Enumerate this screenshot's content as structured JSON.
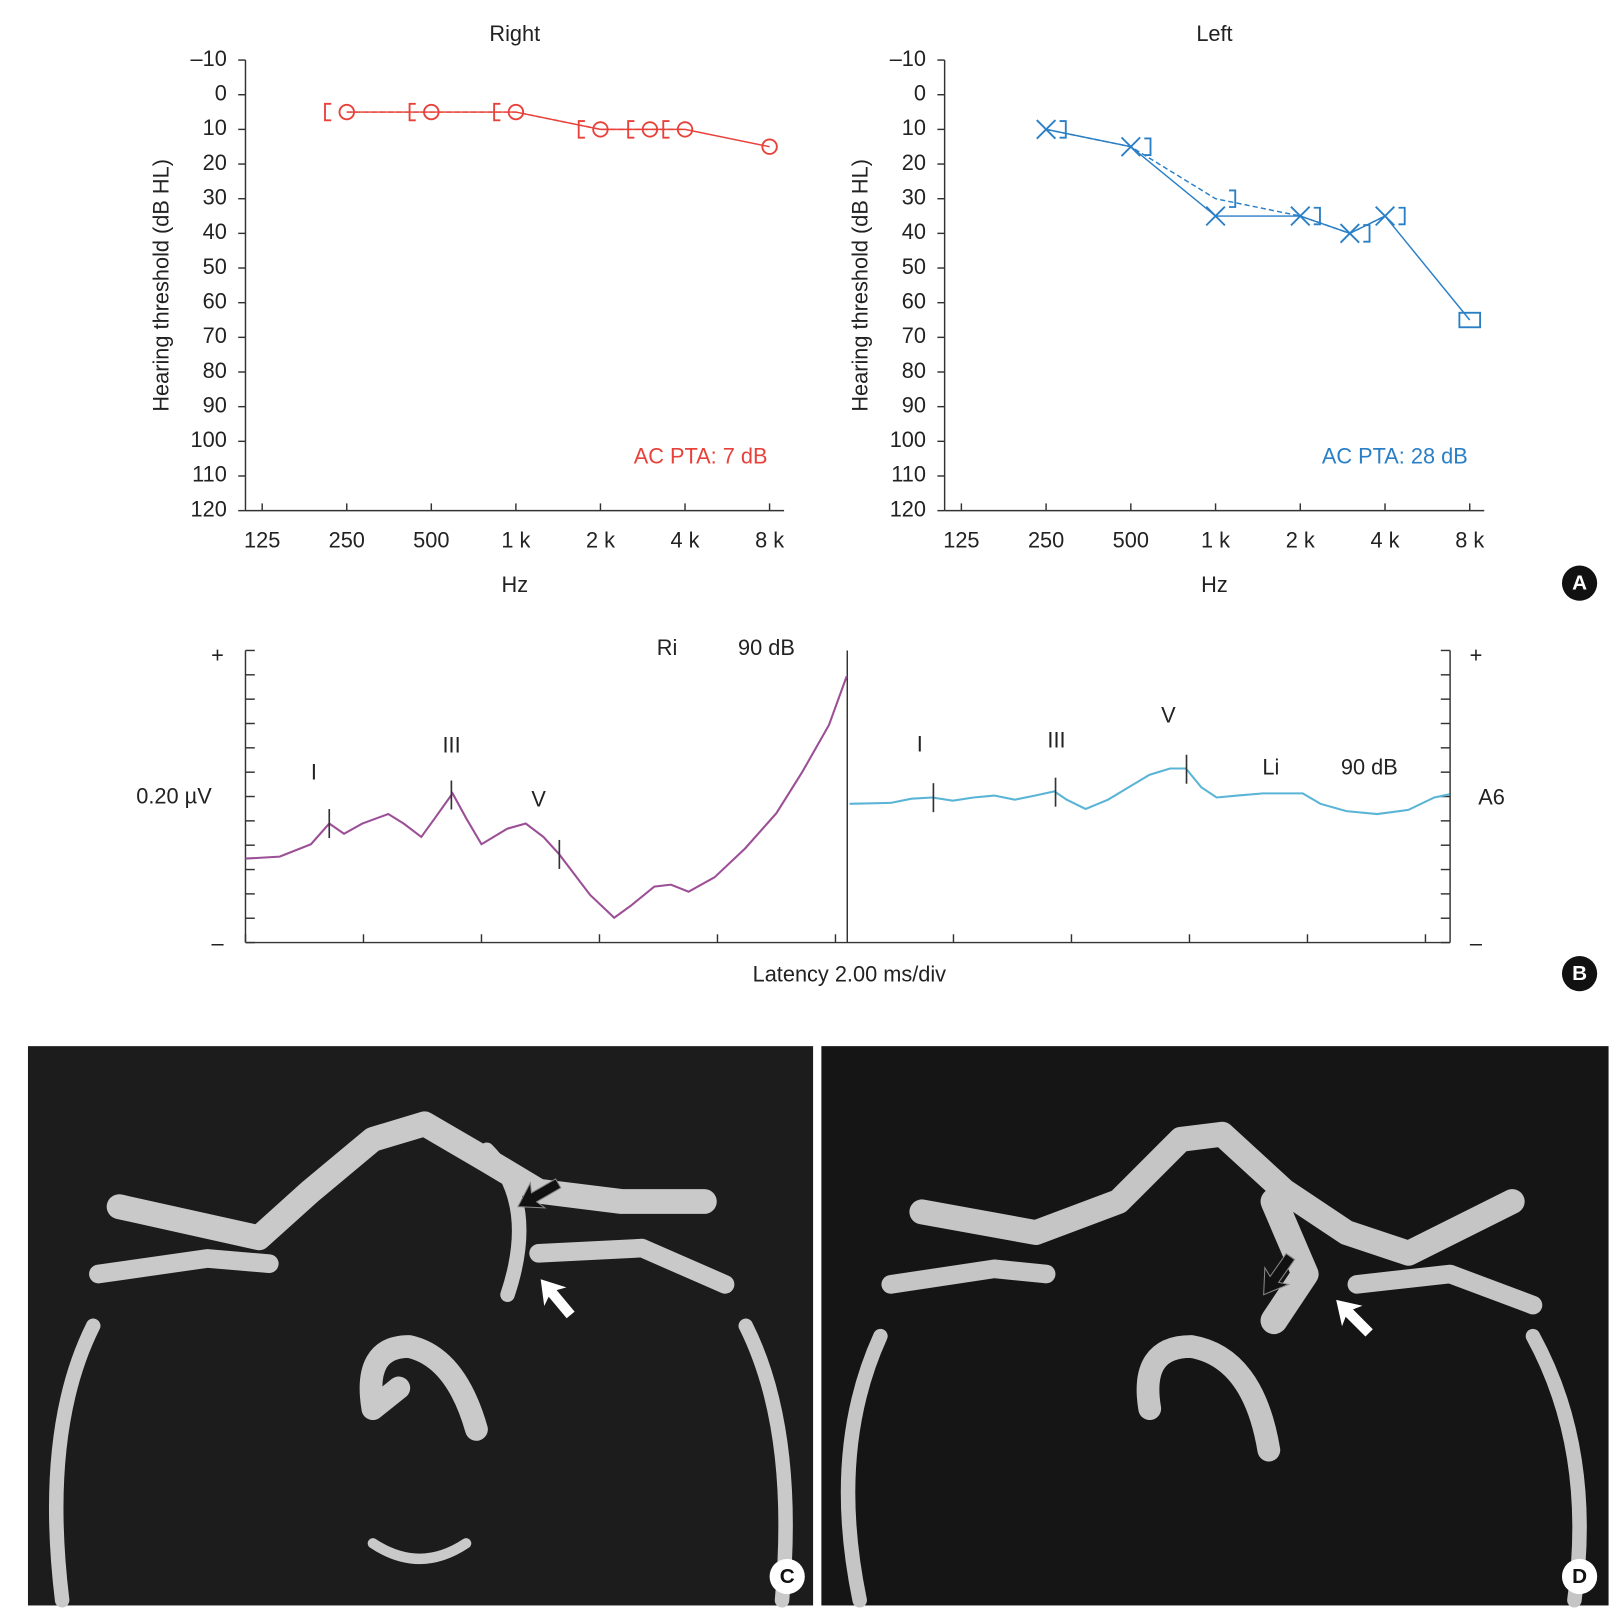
{
  "chart_data": [
    {
      "type": "audiogram",
      "title": "Right",
      "xlabel": "Hz",
      "ylabel": "Hearing threshold (dB HL)",
      "annotation": "AC PTA: 7 dB",
      "color": "#e8413a",
      "x_log": true,
      "y_inverted": true,
      "xlim": [
        109,
        9010
      ],
      "xticks": [
        125,
        250,
        500,
        {
          "value": 1000,
          "label": "1 k"
        },
        {
          "value": 2000,
          "label": "2 k"
        },
        {
          "value": 4000,
          "label": "4 k"
        },
        {
          "value": 8000,
          "label": "8 k"
        }
      ],
      "ylim": [
        -10,
        120
      ],
      "yticks": [
        {
          "value": -10,
          "label": "–10"
        },
        0,
        10,
        20,
        30,
        40,
        50,
        60,
        70,
        80,
        90,
        100,
        110,
        120
      ],
      "series": [
        {
          "x": [
            250,
            500,
            1000,
            2000,
            3000,
            4000,
            8000
          ],
          "values": [
            5,
            5,
            5,
            10,
            10,
            10,
            15
          ],
          "markers": [
            "circle",
            "circle",
            "circle",
            "circle",
            "circle",
            "circle",
            "circle"
          ],
          "dashed": false
        },
        {
          "x": [
            250,
            500,
            1000,
            2000,
            3000,
            4000
          ],
          "values": [
            5,
            5,
            5,
            10,
            10,
            10
          ],
          "markers": [
            "bracket-left",
            "bracket-left",
            "bracket-left",
            "bracket-left",
            "bracket-left",
            "bracket-left"
          ],
          "dashed": true
        }
      ]
    },
    {
      "type": "audiogram",
      "title": "Left",
      "xlabel": "Hz",
      "ylabel": "Hearing threshold (dB HL)",
      "annotation": "AC PTA: 28 dB",
      "color": "#2a7fc6",
      "x_log": true,
      "y_inverted": true,
      "xlim": [
        109,
        9010
      ],
      "xticks": [
        125,
        250,
        500,
        {
          "value": 1000,
          "label": "1 k"
        },
        {
          "value": 2000,
          "label": "2 k"
        },
        {
          "value": 4000,
          "label": "4 k"
        },
        {
          "value": 8000,
          "label": "8 k"
        }
      ],
      "ylim": [
        -10,
        120
      ],
      "yticks": [
        {
          "value": -10,
          "label": "–10"
        },
        0,
        10,
        20,
        30,
        40,
        50,
        60,
        70,
        80,
        90,
        100,
        110,
        120
      ],
      "series": [
        {
          "x": [
            250,
            500,
            1000,
            2000,
            3000,
            4000,
            8000
          ],
          "values": [
            10,
            15,
            35,
            35,
            40,
            35,
            65
          ],
          "markers": [
            "x",
            "x",
            "x",
            "x",
            "x",
            "x",
            "square"
          ],
          "dashed": false
        },
        {
          "x": [
            250,
            500,
            1000,
            2000,
            3000,
            4000
          ],
          "values": [
            10,
            15,
            30,
            35,
            40,
            35
          ],
          "markers": [
            "bracket-right",
            "bracket-right",
            "bracket-right",
            "bracket-right",
            "bracket-right",
            "bracket-right"
          ],
          "dashed": true
        }
      ]
    },
    {
      "type": "abr",
      "xlabel": "Latency 2.00 ms/div",
      "scale_label": "0.20 µV",
      "channel": "A6",
      "y_plus": "+",
      "y_minus": "–",
      "xlim": [
        0,
        10.2
      ],
      "ylim": [
        -6,
        6
      ],
      "yticks": [
        -6,
        -5,
        -4,
        -3,
        -2,
        -1,
        0,
        1,
        2,
        3,
        4,
        5,
        6
      ],
      "tick_labels": false,
      "series": [
        {
          "name": "Ri",
          "level": "90 dB",
          "color": "#9b4f96",
          "xticks": [
            0,
            2,
            4,
            6,
            8,
            10
          ],
          "x": [
            0,
            0.58,
            1.11,
            1.42,
            1.67,
            1.98,
            2.42,
            2.68,
            2.98,
            3.21,
            3.51,
            3.74,
            4.0,
            4.44,
            4.75,
            5.05,
            5.32,
            5.84,
            6.25,
            6.54,
            6.93,
            7.21,
            7.51,
            7.95,
            8.47,
            9.0,
            9.44,
            9.89,
            10.19
          ],
          "values": [
            -2.55,
            -2.47,
            -1.96,
            -1.11,
            -1.53,
            -1.11,
            -0.72,
            -1.11,
            -1.66,
            -0.89,
            0.13,
            -0.89,
            -1.96,
            -1.32,
            -1.11,
            -1.66,
            -2.38,
            -4.04,
            -4.98,
            -4.47,
            -3.7,
            -3.62,
            -3.91,
            -3.32,
            -2.13,
            -0.68,
            1.02,
            2.94,
            4.94
          ],
          "peaks": [
            1.42,
            3.49,
            5.32
          ],
          "peak_labels": [
            "I",
            "III",
            "V"
          ]
        },
        {
          "name": "Li",
          "level": "90 dB",
          "color": "#5ab4d6",
          "xticks": [
            1.8,
            3.8,
            5.8,
            7.8,
            9.8
          ],
          "x": [
            0.04,
            0.74,
            1.09,
            1.44,
            1.79,
            2.14,
            2.49,
            2.84,
            3.19,
            3.51,
            3.72,
            4.04,
            4.42,
            4.77,
            5.12,
            5.47,
            5.74,
            6.0,
            6.26,
            6.61,
            7.05,
            7.72,
            8.02,
            8.46,
            8.98,
            9.51,
            9.95,
            10.21
          ],
          "values": [
            -0.3,
            -0.26,
            -0.09,
            -0.04,
            -0.17,
            -0.04,
            0.04,
            -0.13,
            0.04,
            0.21,
            -0.13,
            -0.51,
            -0.13,
            0.38,
            0.89,
            1.15,
            1.15,
            0.38,
            -0.04,
            0.04,
            0.13,
            0.13,
            -0.3,
            -0.6,
            -0.72,
            -0.55,
            -0.04,
            0.09
          ],
          "peaks": [
            1.46,
            3.53,
            5.75
          ],
          "peak_labels": [
            "I",
            "III",
            "V"
          ]
        }
      ]
    }
  ],
  "panel_labels": [
    "A",
    "B",
    "C",
    "D"
  ]
}
